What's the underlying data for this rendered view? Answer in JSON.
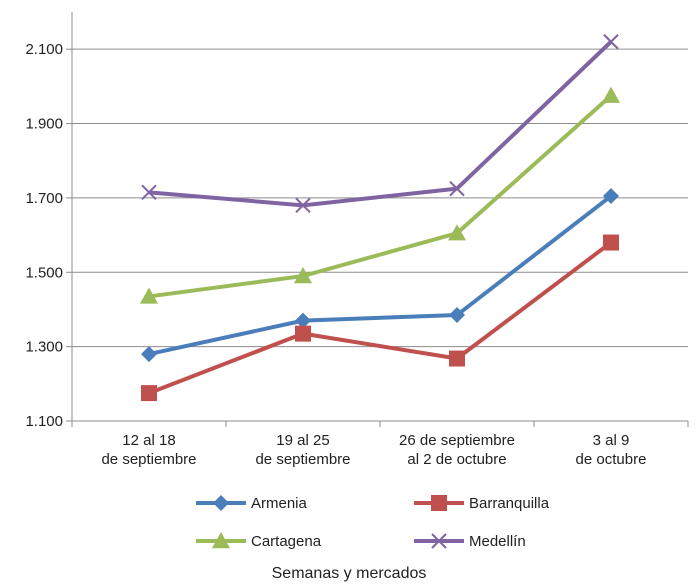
{
  "chart_data": {
    "type": "line",
    "title": "",
    "xlabel": "Semanas y mercados",
    "ylabel": "",
    "categories": [
      [
        "12 al 18",
        "de septiembre"
      ],
      [
        "19 al 25",
        "de septiembre"
      ],
      [
        "26 de septiembre",
        "al 2 de octubre"
      ],
      [
        "3 al 9",
        "de octubre"
      ]
    ],
    "ylim": [
      1100,
      2200
    ],
    "yticks": [
      1100,
      1300,
      1500,
      1700,
      1900,
      2100
    ],
    "ytick_labels": [
      "1.100",
      "1.300",
      "1.500",
      "1.700",
      "1.900",
      "2.100"
    ],
    "grid": "horizontal",
    "legend_position": "bottom",
    "series": [
      {
        "name": "Armenia",
        "values": [
          1280,
          1370,
          1385,
          1705
        ],
        "color": "#4a7ebb",
        "marker": "diamond"
      },
      {
        "name": "Barranquilla",
        "values": [
          1175,
          1335,
          1268,
          1580
        ],
        "color": "#c0504d",
        "marker": "square"
      },
      {
        "name": "Cartagena",
        "values": [
          1435,
          1490,
          1605,
          1975
        ],
        "color": "#9bbb59",
        "marker": "triangle"
      },
      {
        "name": "Medellín",
        "values": [
          1715,
          1680,
          1725,
          2120
        ],
        "color": "#8064a2",
        "marker": "x"
      }
    ]
  }
}
